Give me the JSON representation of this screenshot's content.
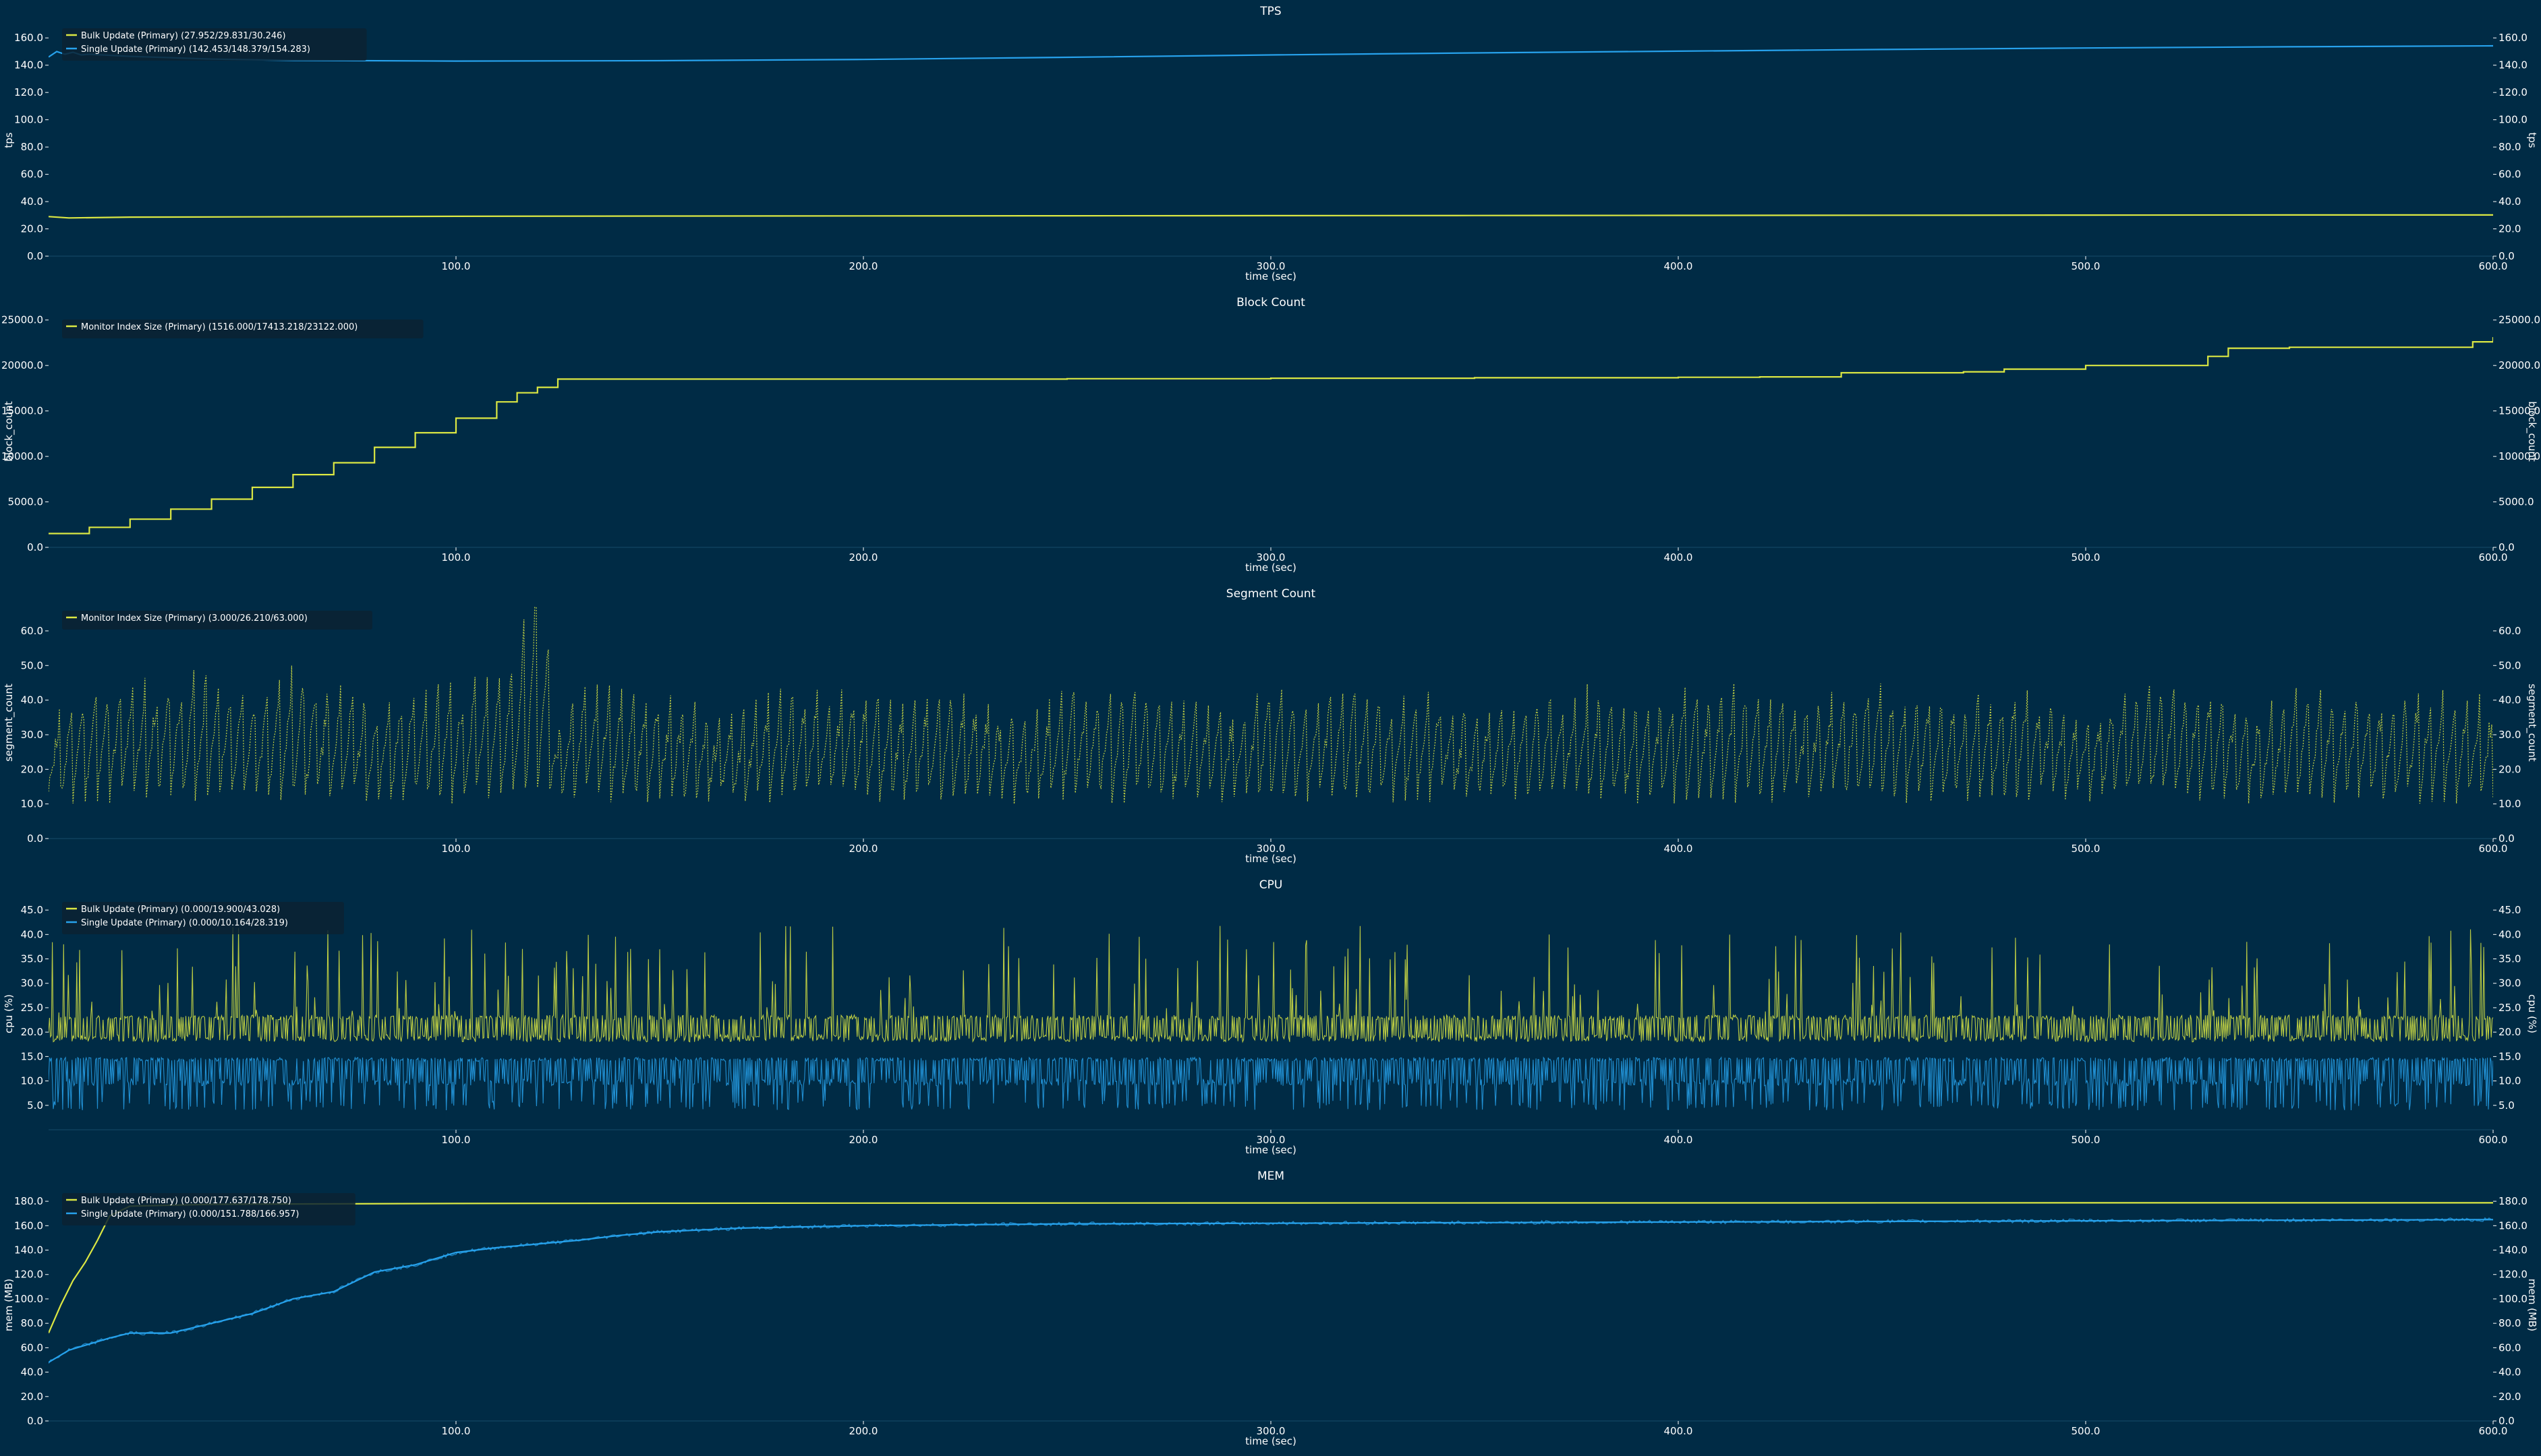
{
  "colors": {
    "background": "#002b45",
    "plot_background": "#002b45",
    "text": "#ffffff",
    "grid": "#0b3b57",
    "yellow": "#dce843",
    "blue": "#27a2ec"
  },
  "chart_data": [
    {
      "type": "line",
      "title": "TPS",
      "xlabel": "time (sec)",
      "ylabel": "tps",
      "xlim": [
        0,
        600
      ],
      "ylim": [
        0,
        170
      ],
      "xticks": [
        "100.0",
        "200.0",
        "300.0",
        "400.0",
        "500.0",
        "600.0"
      ],
      "yticks": [
        "0.0",
        "20.0",
        "40.0",
        "60.0",
        "80.0",
        "100.0",
        "120.0",
        "140.0",
        "160.0"
      ],
      "legend_position": "top-left",
      "grid": false,
      "series": [
        {
          "name": "Bulk Update (Primary) (27.952/29.831/30.246)",
          "color": "#dce843",
          "x": [
            0,
            5,
            20,
            50,
            100,
            150,
            200,
            250,
            300,
            350,
            400,
            450,
            500,
            550,
            600
          ],
          "y": [
            29.0,
            28.0,
            28.6,
            28.8,
            29.2,
            29.4,
            29.5,
            29.6,
            29.7,
            29.8,
            29.9,
            30.0,
            30.1,
            30.2,
            30.2
          ]
        },
        {
          "name": "Single Update (Primary) (142.453/148.379/154.283)",
          "color": "#27a2ec",
          "x": [
            0,
            2,
            4,
            6,
            8,
            10,
            20,
            40,
            60,
            100,
            150,
            200,
            250,
            300,
            350,
            400,
            450,
            500,
            550,
            600
          ],
          "y": [
            146.0,
            150.0,
            148.0,
            149.5,
            147.5,
            148.0,
            146.5,
            144.5,
            143.5,
            143.0,
            143.3,
            144.2,
            145.8,
            147.5,
            149.0,
            150.3,
            151.5,
            152.6,
            153.5,
            154.2
          ]
        }
      ]
    },
    {
      "type": "line",
      "title": "Block Count",
      "xlabel": "time (sec)",
      "ylabel": "block_count",
      "xlim": [
        0,
        600
      ],
      "ylim": [
        0,
        25500
      ],
      "xticks": [
        "100.0",
        "200.0",
        "300.0",
        "400.0",
        "500.0",
        "600.0"
      ],
      "yticks": [
        "0.0",
        "5000.0",
        "10000.0",
        "15000.0",
        "20000.0",
        "25000.0"
      ],
      "legend_position": "top-left",
      "grid": false,
      "series": [
        {
          "name": "Monitor Index Size (Primary) (1516.000/17413.218/23122.000)",
          "color": "#dce843",
          "x": [
            0,
            10,
            20,
            30,
            40,
            50,
            60,
            70,
            80,
            90,
            100,
            110,
            115,
            120,
            125,
            150,
            200,
            250,
            300,
            350,
            400,
            420,
            440,
            470,
            480,
            500,
            530,
            535,
            550,
            590,
            595,
            600
          ],
          "y": [
            1516,
            2200,
            3100,
            4200,
            5300,
            6600,
            8000,
            9300,
            11000,
            12600,
            14200,
            16000,
            17000,
            17600,
            18500,
            18500,
            18500,
            18550,
            18600,
            18650,
            18700,
            18750,
            19200,
            19300,
            19600,
            20000,
            21000,
            21900,
            22000,
            22000,
            22600,
            23122
          ]
        }
      ]
    },
    {
      "type": "line",
      "title": "Segment Count",
      "xlabel": "time (sec)",
      "ylabel": "segment_count",
      "xlim": [
        0,
        600
      ],
      "ylim": [
        0,
        67
      ],
      "xticks": [
        "100.0",
        "200.0",
        "300.0",
        "400.0",
        "500.0",
        "600.0"
      ],
      "yticks": [
        "0.0",
        "10.0",
        "20.0",
        "30.0",
        "40.0",
        "50.0",
        "60.0"
      ],
      "legend_position": "top-left",
      "grid": false,
      "series": [
        {
          "name": "Monitor Index Size (Primary) (3.000/26.210/63.000)",
          "color": "#dce843",
          "x": [
            0,
            10,
            20,
            30,
            40,
            50,
            60,
            70,
            80,
            90,
            100,
            110,
            115,
            120,
            125,
            130,
            140,
            150,
            160,
            170,
            180,
            190,
            200,
            210,
            220,
            230,
            240,
            250,
            260,
            270,
            280,
            290,
            300,
            310,
            320,
            330,
            340,
            350,
            360,
            370,
            380,
            390,
            400,
            410,
            420,
            430,
            440,
            450,
            460,
            470,
            480,
            490,
            500,
            510,
            520,
            530,
            540,
            550,
            560,
            570,
            580,
            590,
            600
          ],
          "y": [
            22,
            28,
            30,
            32,
            34,
            28,
            35,
            30,
            26,
            31,
            29,
            33,
            40,
            63,
            18,
            30,
            28,
            27,
            24,
            22,
            30,
            28,
            29,
            24,
            30,
            25,
            21,
            30,
            28,
            29,
            26,
            24,
            31,
            27,
            29,
            28,
            30,
            22,
            26,
            28,
            29,
            24,
            28,
            29,
            30,
            25,
            28,
            30,
            27,
            26,
            29,
            28,
            22,
            28,
            29,
            30,
            24,
            28,
            30,
            26,
            29,
            28,
            25
          ]
        }
      ]
    },
    {
      "type": "line",
      "title": "CPU",
      "xlabel": "time (sec)",
      "ylabel": "cpu (%)",
      "xlim": [
        0,
        600
      ],
      "ylim": [
        0,
        47.5
      ],
      "xticks": [
        "100.0",
        "200.0",
        "300.0",
        "400.0",
        "500.0",
        "600.0"
      ],
      "yticks": [
        "5.0",
        "10.0",
        "15.0",
        "20.0",
        "25.0",
        "30.0",
        "35.0",
        "40.0",
        "45.0"
      ],
      "legend_position": "top-left",
      "grid": false,
      "series": [
        {
          "name": "Bulk Update (Primary) (0.000/19.900/43.028)",
          "color": "#dce843",
          "x": [
            0,
            50,
            100,
            150,
            200,
            250,
            300,
            350,
            400,
            450,
            500,
            550,
            600
          ],
          "y": [
            19.9,
            19.9,
            19.9,
            19.9,
            19.9,
            19.9,
            19.9,
            19.9,
            19.9,
            19.9,
            19.9,
            19.9,
            19.9
          ]
        },
        {
          "name": "Single Update (Primary) (0.000/10.164/28.319)",
          "color": "#27a2ec",
          "x": [
            0,
            50,
            100,
            150,
            200,
            250,
            300,
            350,
            400,
            450,
            500,
            550,
            600
          ],
          "y": [
            10.2,
            10.2,
            10.2,
            10.2,
            10.2,
            10.2,
            10.2,
            10.2,
            10.2,
            10.2,
            10.2,
            10.2,
            10.2
          ]
        }
      ]
    },
    {
      "type": "line",
      "title": "MEM",
      "xlabel": "time (sec)",
      "ylabel": "mem (MB)",
      "xlim": [
        0,
        600
      ],
      "ylim": [
        0,
        190
      ],
      "xticks": [
        "100.0",
        "200.0",
        "300.0",
        "400.0",
        "500.0",
        "600.0"
      ],
      "yticks": [
        "0.0",
        "20.0",
        "40.0",
        "60.0",
        "80.0",
        "100.0",
        "120.0",
        "140.0",
        "160.0",
        "180.0"
      ],
      "legend_position": "top-left",
      "grid": false,
      "series": [
        {
          "name": "Bulk Update (Primary) (0.000/177.637/178.750)",
          "color": "#dce843",
          "x": [
            0,
            3,
            6,
            9,
            12,
            15,
            20,
            40,
            60,
            100,
            150,
            200,
            300,
            400,
            500,
            600
          ],
          "y": [
            72,
            95,
            115,
            130,
            148,
            168,
            176,
            177.5,
            177.8,
            178.2,
            178.4,
            178.5,
            178.6,
            178.7,
            178.75,
            178.75
          ]
        },
        {
          "name": "Single Update (Primary) (0.000/151.788/166.957)",
          "color": "#27a2ec",
          "x": [
            0,
            5,
            10,
            15,
            20,
            30,
            40,
            50,
            60,
            70,
            80,
            90,
            100,
            110,
            120,
            130,
            140,
            150,
            170,
            200,
            250,
            300,
            350,
            400,
            450,
            500,
            550,
            600
          ],
          "y": [
            48,
            58,
            63,
            68,
            72,
            72,
            80,
            88,
            100,
            106,
            122,
            128,
            138,
            142,
            145,
            148,
            152,
            155,
            158,
            160,
            161.5,
            162,
            162.5,
            163,
            163.5,
            164,
            164.5,
            165
          ]
        }
      ]
    }
  ]
}
